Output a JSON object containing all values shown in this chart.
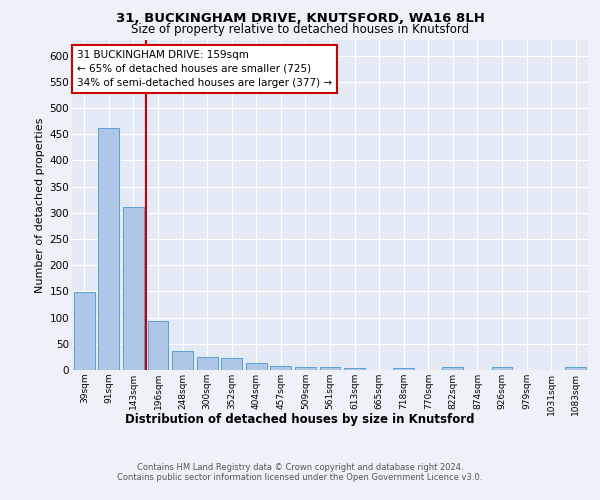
{
  "title1": "31, BUCKINGHAM DRIVE, KNUTSFORD, WA16 8LH",
  "title2": "Size of property relative to detached houses in Knutsford",
  "xlabel": "Distribution of detached houses by size in Knutsford",
  "ylabel": "Number of detached properties",
  "categories": [
    "39sqm",
    "91sqm",
    "143sqm",
    "196sqm",
    "248sqm",
    "300sqm",
    "352sqm",
    "404sqm",
    "457sqm",
    "509sqm",
    "561sqm",
    "613sqm",
    "665sqm",
    "718sqm",
    "770sqm",
    "822sqm",
    "874sqm",
    "926sqm",
    "979sqm",
    "1031sqm",
    "1083sqm"
  ],
  "values": [
    148,
    462,
    311,
    93,
    36,
    24,
    22,
    13,
    8,
    6,
    5,
    4,
    0,
    4,
    0,
    5,
    0,
    5,
    0,
    0,
    5
  ],
  "bar_color": "#aec6e8",
  "bar_edge_color": "#5a9fd4",
  "vline_x_index": 2,
  "vline_color": "#cc0000",
  "annotation_text": "31 BUCKINGHAM DRIVE: 159sqm\n← 65% of detached houses are smaller (725)\n34% of semi-detached houses are larger (377) →",
  "annotation_box_color": "#ffffff",
  "annotation_box_edge": "#cc0000",
  "footnote1": "Contains HM Land Registry data © Crown copyright and database right 2024.",
  "footnote2": "Contains public sector information licensed under the Open Government Licence v3.0.",
  "ylim": [
    0,
    630
  ],
  "yticks": [
    0,
    50,
    100,
    150,
    200,
    250,
    300,
    350,
    400,
    450,
    500,
    550,
    600
  ],
  "background_color": "#eef2f8",
  "plot_bg_color": "#e4eaf5"
}
